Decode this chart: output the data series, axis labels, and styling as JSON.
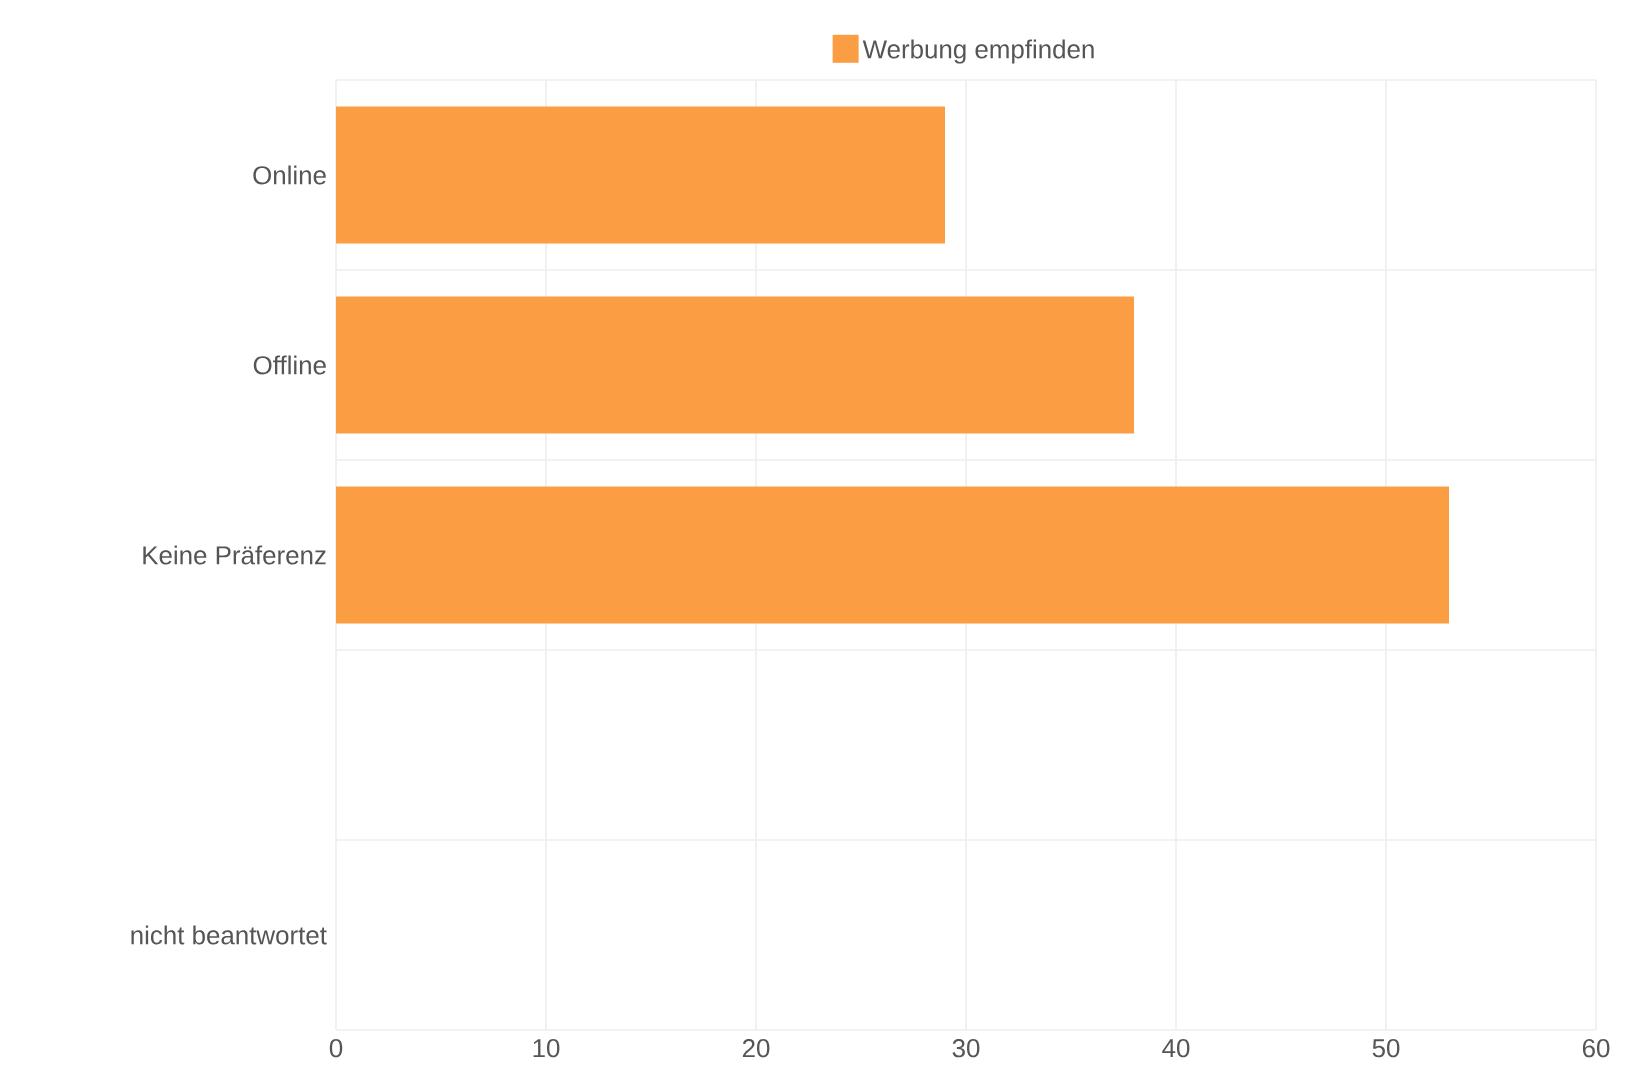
{
  "chart_data": {
    "type": "bar",
    "orientation": "horizontal",
    "categories": [
      "Online",
      "Offline",
      "Keine Präferenz",
      null,
      "nicht beantwortet"
    ],
    "series": [
      {
        "name": "Werbung empfinden",
        "color": "#fb9e43",
        "values": [
          29,
          38,
          53,
          null,
          0
        ]
      }
    ],
    "xlim": [
      0,
      60
    ],
    "xticks": [
      0,
      10,
      20,
      30,
      40,
      50,
      60
    ],
    "grid": true,
    "legend": "top"
  }
}
